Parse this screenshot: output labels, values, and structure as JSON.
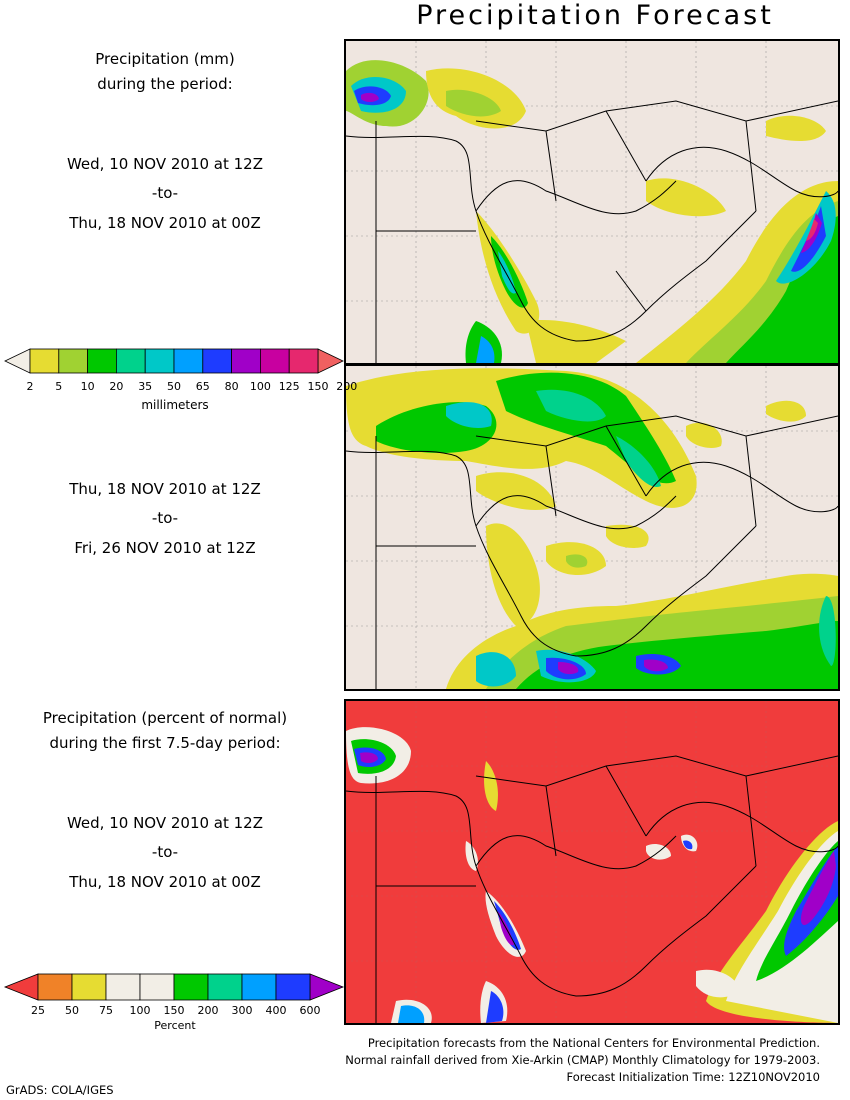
{
  "title": "Precipitation Forecast",
  "panel1": {
    "desc_line1": "Precipitation (mm)",
    "desc_line2": "during the period:",
    "start": "Wed, 10 NOV 2010 at 12Z",
    "to": "-to-",
    "end": "Thu, 18 NOV 2010 at 00Z"
  },
  "panel2": {
    "start": "Thu, 18 NOV 2010 at 12Z",
    "to": "-to-",
    "end": "Fri, 26 NOV 2010 at 12Z"
  },
  "panel3": {
    "desc_line1": "Precipitation (percent of normal)",
    "desc_line2": "during the first 7.5-day period:",
    "start": "Wed, 10 NOV 2010 at 12Z",
    "to": "-to-",
    "end": "Thu, 18 NOV 2010 at 00Z"
  },
  "mm_colorbar": {
    "unit_label": "millimeters",
    "ticks": [
      "2",
      "5",
      "10",
      "20",
      "35",
      "50",
      "65",
      "80",
      "100",
      "125",
      "150",
      "200"
    ],
    "colors": [
      "#f2eee6",
      "#e6dc32",
      "#a0d232",
      "#00c800",
      "#00d28c",
      "#00c8c8",
      "#00a0ff",
      "#1e3cff",
      "#a000c8",
      "#c800a0",
      "#e6286e",
      "#f06060"
    ]
  },
  "pct_colorbar": {
    "unit_label": "Percent",
    "ticks": [
      "25",
      "50",
      "75",
      "100",
      "150",
      "200",
      "300",
      "400",
      "600"
    ],
    "colors": [
      "#f03c3c",
      "#f08228",
      "#e6dc32",
      "#f2eee6",
      "#f2eee6",
      "#00c800",
      "#00d28c",
      "#00a0ff",
      "#1e3cff",
      "#a000c8"
    ]
  },
  "footer": {
    "line1": "Precipitation forecasts from the National Centers for Environmental Prediction.",
    "line2": "Normal rainfall derived from Xie-Arkin (CMAP) Monthly Climatology for 1979-2003.",
    "line3": "Forecast Initialization Time: 12Z10NOV2010"
  },
  "credit": "GrADS: COLA/IGES"
}
